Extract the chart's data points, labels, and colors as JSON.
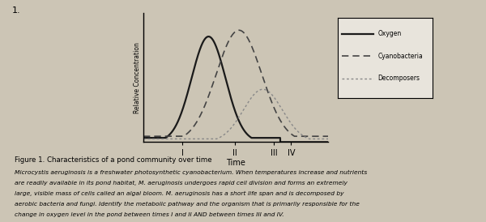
{
  "ylabel": "Relative Concentration",
  "xlabel": "Time",
  "xtick_labels": [
    "I",
    "II",
    "III",
    "IV"
  ],
  "xtick_positions": [
    1.8,
    4.2,
    6.0,
    6.8
  ],
  "legend_labels": [
    "Oxygen",
    "Cyanobacteria",
    "Decomposers"
  ],
  "oxygen_color": "#1a1a1a",
  "cyano_color": "#444444",
  "decomp_color": "#888888",
  "background_color": "#ccc5b5",
  "figure_number": "1.",
  "title": "Figure 1. Characteristics of a pond community over time",
  "body_text_line1": "Microcystis aeruginosis is a freshwater photosynthetic cyanobacterium. When temperatures increase and nutrients",
  "body_text_line2": "are readily available in its pond habitat, M. aeruginosis undergoes rapid cell division and forms an extremely",
  "body_text_line3": "large, visible mass of cells called an algal bloom. M. aeruginosis has a short life span and is decomposed by",
  "body_text_line4": "aerobic bacteria and fungi. Identify the metabolic pathway and the organism that is primarily responsible for the",
  "body_text_line5": "change in oxygen level in the pond between times I and II AND between times III and IV."
}
